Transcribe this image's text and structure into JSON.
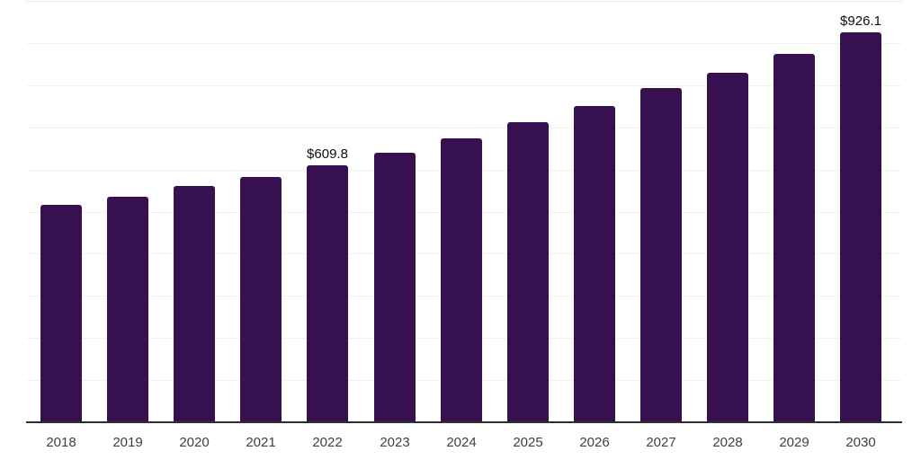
{
  "chart_data": {
    "type": "bar",
    "title": "",
    "xlabel": "",
    "ylabel": "",
    "categories": [
      "2018",
      "2019",
      "2020",
      "2021",
      "2022",
      "2023",
      "2024",
      "2025",
      "2026",
      "2027",
      "2028",
      "2029",
      "2030"
    ],
    "values": [
      515.9,
      536.0,
      560.2,
      582.1,
      609.8,
      638.9,
      673.7,
      712.0,
      751.2,
      793.0,
      829.5,
      875.0,
      926.1
    ],
    "data_labels": [
      null,
      null,
      null,
      null,
      "$609.8",
      null,
      null,
      null,
      null,
      null,
      null,
      null,
      "$926.1"
    ],
    "ylim": [
      0,
      1000
    ],
    "grid_step": 100,
    "grid": "horizontal",
    "legend_position": "none"
  },
  "colors": {
    "background": "#ffffff",
    "bar": "#37114f",
    "axis_line": "#2e2e2e",
    "gridline": "#f2f2f2",
    "top_gridline": "#e9e9e9",
    "tick_label": "#404040",
    "data_label": "#0d0d0d"
  }
}
